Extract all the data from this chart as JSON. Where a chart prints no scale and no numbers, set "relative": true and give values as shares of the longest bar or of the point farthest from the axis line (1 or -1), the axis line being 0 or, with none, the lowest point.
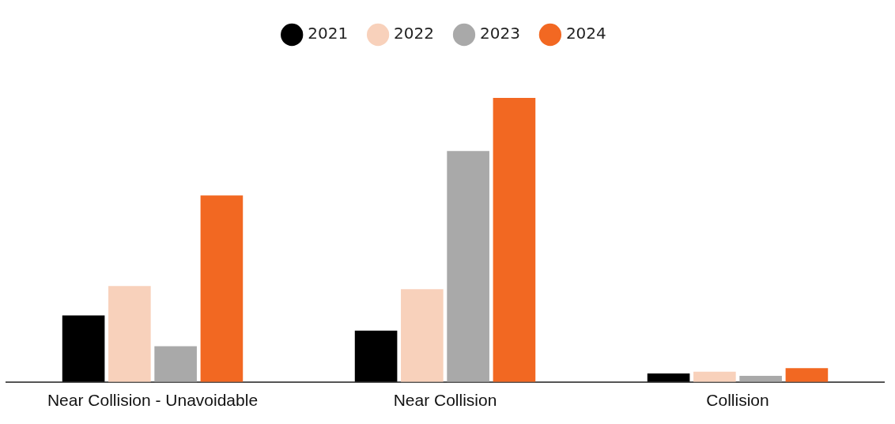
{
  "chart_data": {
    "type": "bar",
    "relative": true,
    "legend": "top",
    "grid": false,
    "categories": [
      "Near Collision - Unavoidable",
      "Near Collision",
      "Collision"
    ],
    "series": [
      {
        "name": "2021",
        "color": "#000000",
        "values": [
          0.234,
          0.181,
          0.03
        ]
      },
      {
        "name": "2022",
        "color": "#f8d1bb",
        "values": [
          0.338,
          0.327,
          0.036
        ]
      },
      {
        "name": "2023",
        "color": "#a9a9a9",
        "values": [
          0.126,
          0.813,
          0.022
        ]
      },
      {
        "name": "2024",
        "color": "#f26822",
        "values": [
          0.657,
          1,
          0.049
        ]
      }
    ]
  }
}
